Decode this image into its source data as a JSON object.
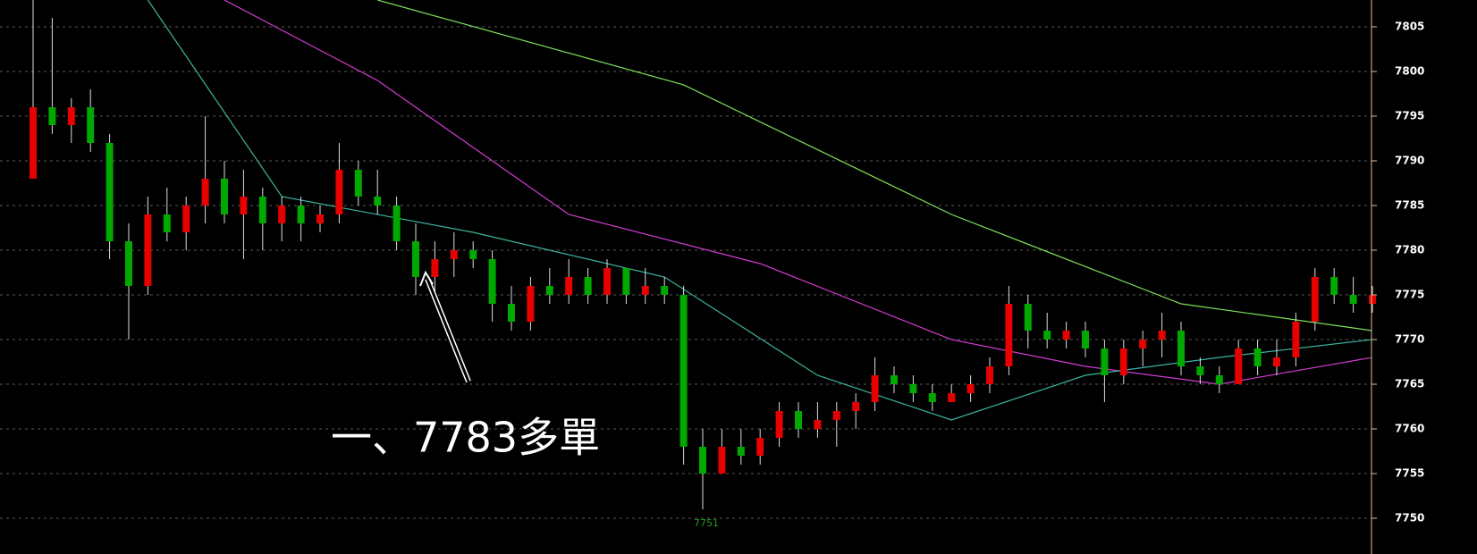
{
  "chart_data": {
    "type": "candlestick",
    "up_color": "#e60000",
    "down_color": "#00a800",
    "grid": true,
    "ylim": [
      7746,
      7808
    ],
    "yticks": [
      7750,
      7755,
      7760,
      7765,
      7770,
      7775,
      7780,
      7785,
      7790,
      7795,
      7800,
      7805
    ],
    "annotation": "一、7783多單",
    "low_label_index": 35,
    "candles": {
      "open": [
        7788,
        7796,
        7794,
        7796,
        7792,
        7781,
        7776,
        7784,
        7782,
        7785,
        7788,
        7784,
        7786,
        7783,
        7785,
        7783,
        7784,
        7789,
        7786,
        7785,
        7781,
        7777,
        7779,
        7780,
        7779,
        7774,
        7772,
        7776,
        7775,
        7777,
        7775,
        7778,
        7775,
        7776,
        7775,
        7758,
        7755,
        7758,
        7757,
        7759,
        7762,
        7760,
        7761,
        7762,
        7763,
        7766,
        7765,
        7764,
        7763,
        7764,
        7765,
        7767,
        7774,
        7771,
        7770,
        7771,
        7769,
        7766,
        7769,
        7770,
        7771,
        7767,
        7766,
        7765,
        7769,
        7767,
        7768,
        7772,
        7777,
        7775,
        7774
      ],
      "high": [
        7808,
        7806,
        7797,
        7798,
        7793,
        7783,
        7786,
        7787,
        7786,
        7795,
        7790,
        7789,
        7787,
        7786,
        7786,
        7785,
        7792,
        7790,
        7789,
        7786,
        7783,
        7781,
        7782,
        7781,
        7780,
        7776,
        7777,
        7778,
        7779,
        7778,
        7779,
        7778,
        7778,
        7777,
        7776,
        7760,
        7760,
        7760,
        7760,
        7763,
        7763,
        7763,
        7763,
        7764,
        7768,
        7767,
        7766,
        7765,
        7765,
        7766,
        7768,
        7776,
        7775,
        7773,
        7772,
        7772,
        7770,
        7770,
        7771,
        7773,
        7772,
        7768,
        7767,
        7770,
        7770,
        7770,
        7773,
        7778,
        7778,
        7777,
        7776
      ],
      "low": [
        7788,
        7793,
        7792,
        7791,
        7779,
        7770,
        7775,
        7781,
        7780,
        7783,
        7783,
        7779,
        7780,
        7781,
        7781,
        7782,
        7783,
        7785,
        7784,
        7780,
        7775,
        7775,
        7777,
        7778,
        7772,
        7771,
        7771,
        7774,
        7774,
        7774,
        7774,
        7774,
        7774,
        7774,
        7756,
        7751,
        7755,
        7756,
        7756,
        7758,
        7759,
        7759,
        7758,
        7760,
        7762,
        7764,
        7763,
        7762,
        7763,
        7763,
        7764,
        7766,
        7769,
        7769,
        7769,
        7768,
        7763,
        7765,
        7767,
        7768,
        7766,
        7765,
        7764,
        7765,
        7766,
        7766,
        7767,
        7771,
        7774,
        7773,
        7773
      ],
      "close": [
        7796,
        7794,
        7796,
        7792,
        7781,
        7776,
        7784,
        7782,
        7785,
        7788,
        7784,
        7786,
        7783,
        7785,
        7783,
        7784,
        7789,
        7786,
        7785,
        7781,
        7777,
        7779,
        7780,
        7779,
        7774,
        7772,
        7776,
        7775,
        7777,
        7775,
        7778,
        7775,
        7776,
        7775,
        7758,
        7755,
        7758,
        7757,
        7759,
        7762,
        7760,
        7761,
        7762,
        7763,
        7766,
        7765,
        7764,
        7763,
        7764,
        7765,
        7767,
        7774,
        7771,
        7770,
        7771,
        7769,
        7766,
        7769,
        7770,
        7771,
        7767,
        7766,
        7765,
        7769,
        7767,
        7768,
        7772,
        7777,
        7775,
        7774,
        7775
      ]
    },
    "lines": [
      {
        "color": "#7ee05a",
        "x": [
          18,
          34,
          48,
          60,
          70
        ],
        "values": [
          7808,
          7798.5,
          7784,
          7774,
          7771
        ]
      },
      {
        "color": "#d23cd2",
        "x": [
          10,
          18,
          28,
          38,
          48,
          55,
          62,
          70
        ],
        "values": [
          7808,
          7799,
          7784,
          7778.5,
          7770,
          7767,
          7765,
          7768
        ]
      },
      {
        "color": "#3cb4a0",
        "x": [
          6,
          13,
          23,
          33,
          41,
          48,
          55,
          62,
          70
        ],
        "values": [
          7808,
          7786,
          7782,
          7777,
          7766,
          7761,
          7766,
          7768,
          7770
        ]
      }
    ]
  }
}
